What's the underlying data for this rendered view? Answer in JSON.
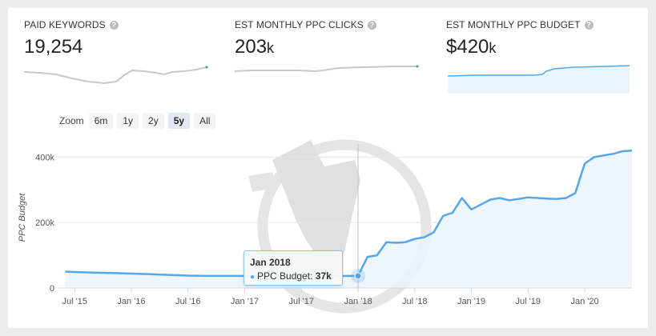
{
  "stats": [
    {
      "label": "PAID KEYWORDS",
      "value": "19,254",
      "unit": "",
      "prefix": ""
    },
    {
      "label": "EST MONTHLY PPC CLICKS",
      "value": "203",
      "unit": "k",
      "prefix": ""
    },
    {
      "label": "EST MONTHLY PPC BUDGET",
      "value": "420",
      "unit": "k",
      "prefix": "$"
    }
  ],
  "help_glyph": "?",
  "zoom": {
    "label": "Zoom",
    "options": [
      "6m",
      "1y",
      "2y",
      "5y",
      "All"
    ],
    "selected": "5y"
  },
  "tooltip": {
    "title": "Jan 2018",
    "series_label": "PPC Budget:",
    "value": "37k"
  },
  "colors": {
    "series": "#55a7ea",
    "fill": "#eaf4fd",
    "sparkline_gray": "#c8c8c8",
    "grid": "#e6e6e6"
  },
  "chart_data": {
    "type": "area",
    "ylabel": "PPC Budget",
    "y_ticks": [
      "0",
      "200k",
      "400k"
    ],
    "ylim": [
      0,
      440000
    ],
    "x_ticks": [
      "Jul '15",
      "Jan '16",
      "Jul '16",
      "Jan '17",
      "Jul '17",
      "Jan '18",
      "Jul '18",
      "Jan '19",
      "Jul '19",
      "Jan '20"
    ],
    "grid": true,
    "series": [
      {
        "name": "PPC Budget",
        "x": [
          "2015-06",
          "2015-07",
          "2015-09",
          "2015-11",
          "2016-01",
          "2016-03",
          "2016-05",
          "2016-07",
          "2016-09",
          "2016-11",
          "2017-01",
          "2017-03",
          "2017-05",
          "2017-07",
          "2017-09",
          "2017-11",
          "2017-12",
          "2018-01",
          "2018-02",
          "2018-03",
          "2018-04",
          "2018-05",
          "2018-06",
          "2018-07",
          "2018-08",
          "2018-09",
          "2018-10",
          "2018-11",
          "2018-12",
          "2019-01",
          "2019-02",
          "2019-03",
          "2019-04",
          "2019-05",
          "2019-06",
          "2019-07",
          "2019-08",
          "2019-09",
          "2019-10",
          "2019-11",
          "2019-12",
          "2020-01",
          "2020-02",
          "2020-03",
          "2020-04",
          "2020-05",
          "2020-06"
        ],
        "values": [
          50000,
          49000,
          47000,
          46000,
          44000,
          42000,
          40000,
          38000,
          37000,
          37000,
          37000,
          37000,
          37000,
          37000,
          37000,
          37000,
          37000,
          37000,
          95000,
          100000,
          140000,
          138000,
          140000,
          150000,
          155000,
          170000,
          220000,
          230000,
          275000,
          240000,
          255000,
          270000,
          275000,
          268000,
          272000,
          277000,
          275000,
          273000,
          272000,
          275000,
          290000,
          380000,
          400000,
          405000,
          410000,
          418000,
          420000
        ]
      }
    ],
    "highlight": {
      "x": "2018-01",
      "value": 37000
    }
  }
}
